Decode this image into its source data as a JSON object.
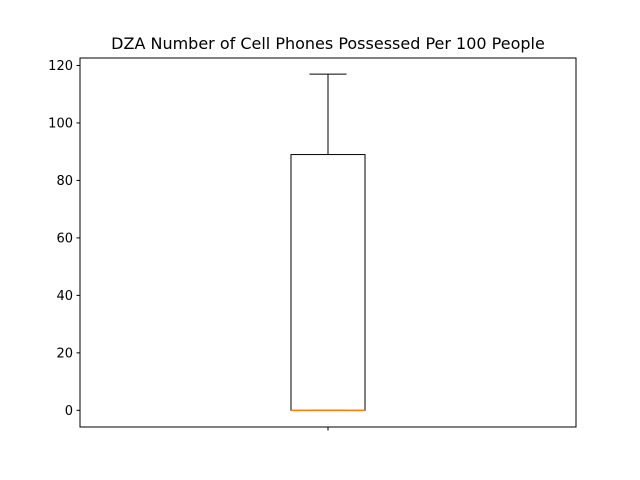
{
  "chart_data": {
    "type": "box",
    "title": "DZA Number of Cell Phones Possessed Per 100 People",
    "xlabel": "",
    "ylabel": "",
    "ylim": [
      -5.8,
      122.6
    ],
    "yticks": [
      0,
      20,
      40,
      60,
      80,
      100,
      120
    ],
    "grid": false,
    "box": {
      "whisker_low": 0,
      "q1": 0,
      "median": 0,
      "q3": 89,
      "whisker_high": 117
    },
    "colors": {
      "box": "#000000",
      "median": "#ff7f0e"
    }
  }
}
